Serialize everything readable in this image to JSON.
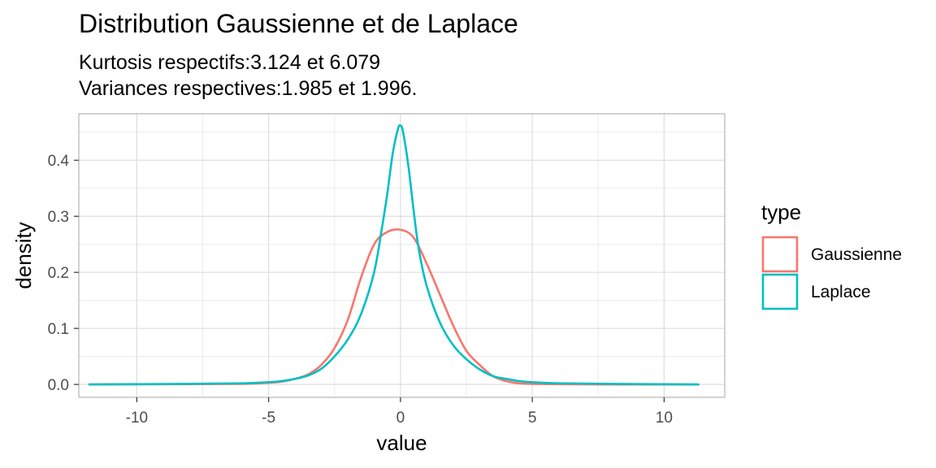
{
  "chart_data": {
    "type": "line",
    "title": "Distribution Gaussienne  et de Laplace",
    "subtitle_lines": [
      "Kurtosis respectifs:3.124 et 6.079",
      "Variances respectives:1.985 et 1.996."
    ],
    "xlabel": "value",
    "ylabel": "density",
    "xlim": [
      -12.2,
      12.3
    ],
    "ylim": [
      -0.023,
      0.483
    ],
    "x_ticks": [
      -10,
      -5,
      0,
      5,
      10
    ],
    "x_tick_labels": [
      "-10",
      "-5",
      "0",
      "5",
      "10"
    ],
    "y_ticks": [
      0.0,
      0.1,
      0.2,
      0.3,
      0.4
    ],
    "y_tick_labels": [
      "0.0",
      "0.1",
      "0.2",
      "0.3",
      "0.4"
    ],
    "grid": true,
    "legend": {
      "title": "type",
      "position": "right"
    },
    "series": [
      {
        "name": "Gaussienne",
        "color": "#F8766D",
        "x": [
          -11.8,
          -8,
          -6,
          -5,
          -4.5,
          -4,
          -3.5,
          -3,
          -2.5,
          -2,
          -1.5,
          -1,
          -0.5,
          0,
          0.5,
          1,
          1.5,
          2,
          2.5,
          3,
          3.5,
          4,
          4.5,
          5,
          6,
          8,
          11.3
        ],
        "y": [
          0,
          0.0005,
          0.001,
          0.003,
          0.005,
          0.01,
          0.018,
          0.035,
          0.065,
          0.115,
          0.19,
          0.25,
          0.272,
          0.276,
          0.262,
          0.215,
          0.16,
          0.105,
          0.06,
          0.035,
          0.015,
          0.006,
          0.002,
          0.001,
          0.0005,
          0,
          0
        ]
      },
      {
        "name": "Laplace",
        "color": "#00BFC4",
        "x": [
          -11.8,
          -8,
          -6,
          -5,
          -4.5,
          -4,
          -3.5,
          -3,
          -2.5,
          -2,
          -1.5,
          -1,
          -0.7,
          -0.5,
          -0.3,
          -0.1,
          0,
          0.1,
          0.3,
          0.5,
          0.7,
          1,
          1.5,
          2,
          2.5,
          3,
          3.5,
          4,
          4.5,
          5,
          6,
          8,
          11.3
        ],
        "y": [
          0,
          0.001,
          0.002,
          0.004,
          0.006,
          0.01,
          0.016,
          0.028,
          0.05,
          0.08,
          0.125,
          0.2,
          0.28,
          0.34,
          0.41,
          0.455,
          0.462,
          0.45,
          0.39,
          0.31,
          0.24,
          0.175,
          0.11,
          0.07,
          0.045,
          0.027,
          0.015,
          0.01,
          0.006,
          0.004,
          0.002,
          0.001,
          0
        ]
      }
    ]
  }
}
